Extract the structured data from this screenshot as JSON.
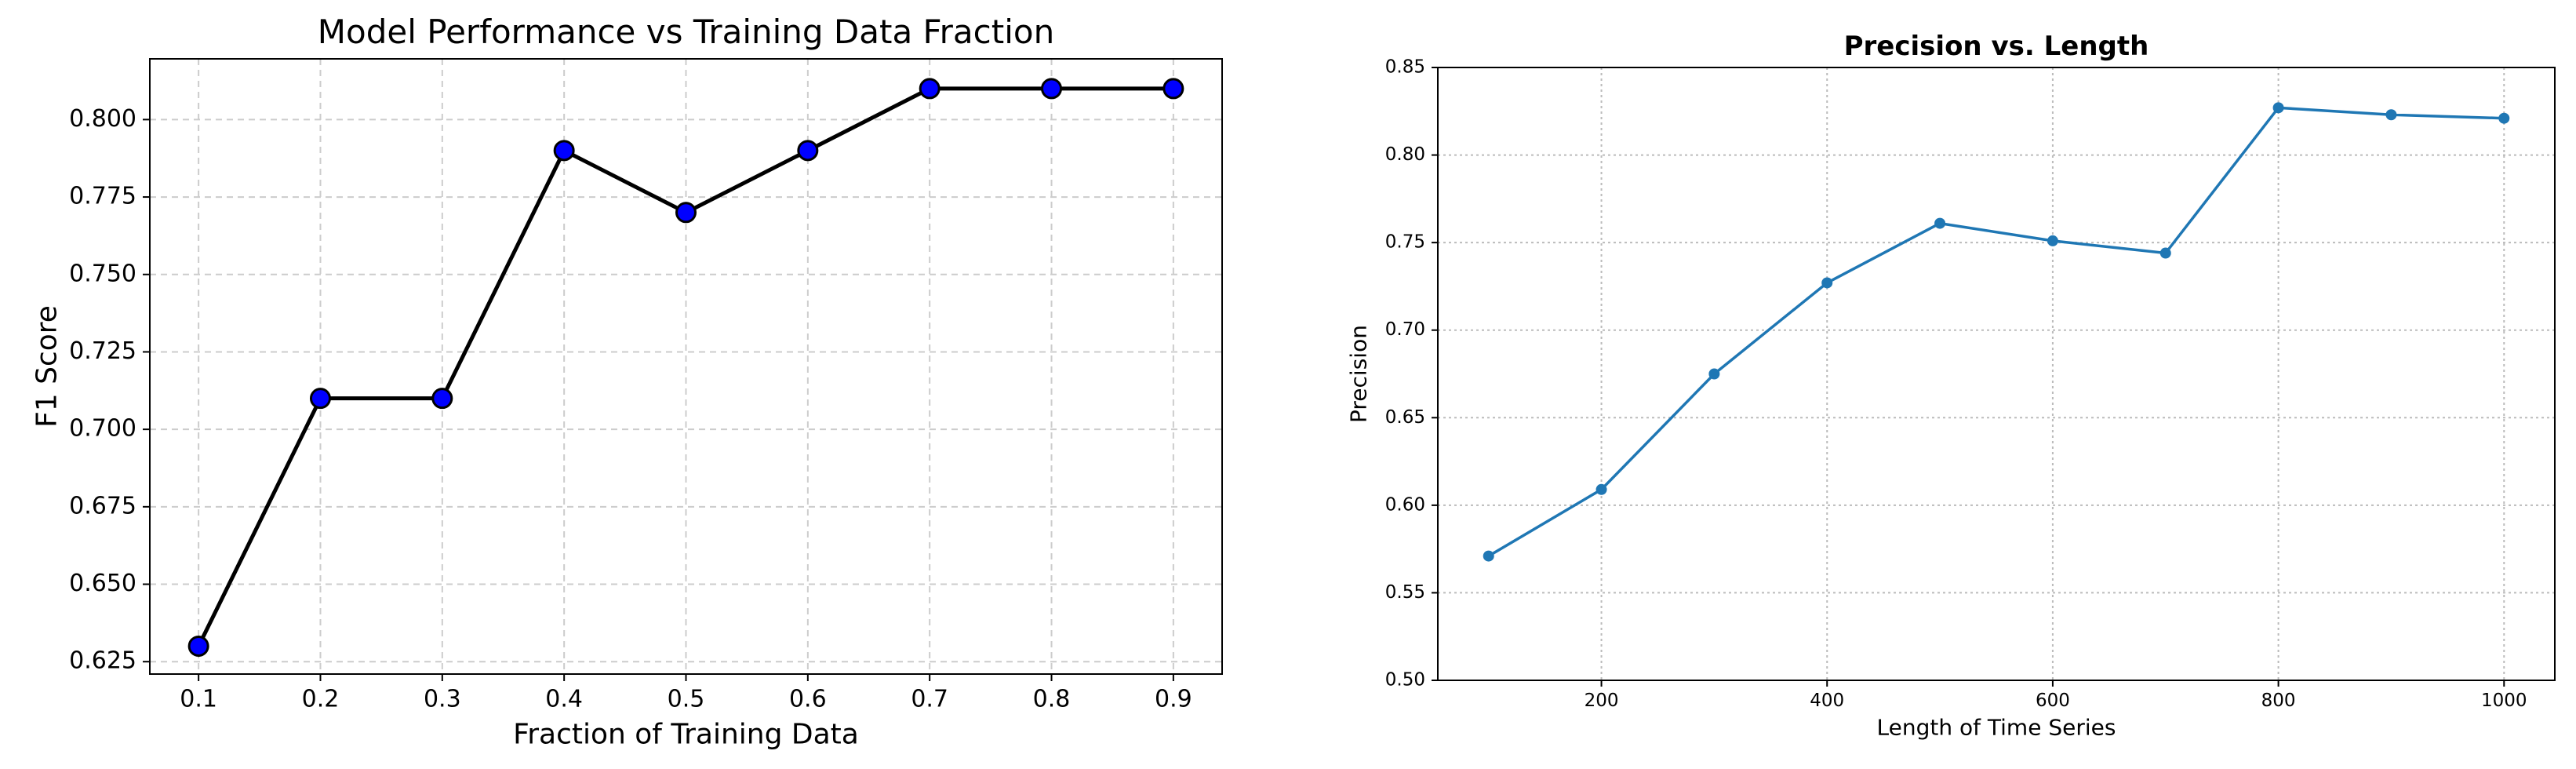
{
  "chart_data": [
    {
      "type": "line",
      "title": "Model Performance vs Training Data Fraction",
      "x_label": "Fraction of Training Data",
      "y_label": "F1 Score",
      "x": [
        0.1,
        0.2,
        0.3,
        0.4,
        0.5,
        0.6,
        0.7,
        0.8,
        0.9
      ],
      "values": [
        0.63,
        0.71,
        0.71,
        0.79,
        0.77,
        0.79,
        0.81,
        0.81,
        0.81
      ],
      "color": "#000000",
      "marker_color": "#0000ff",
      "xlim": [
        0.06,
        0.94
      ],
      "ylim": [
        0.621,
        0.8196
      ],
      "xticks": [
        0.1,
        0.2,
        0.3,
        0.4,
        0.5,
        0.6,
        0.7,
        0.8,
        0.9
      ],
      "yticks": [
        0.625,
        {
          "value": 0.65,
          "label": "0.650"
        },
        0.675,
        {
          "value": 0.7,
          "label": "0.700"
        },
        0.725,
        {
          "value": 0.75,
          "label": "0.750"
        },
        0.775,
        {
          "value": 0.8,
          "label": "0.800"
        }
      ],
      "grid": true
    },
    {
      "type": "line",
      "title": "Precision vs. Length",
      "x_label": "Length of Time Series",
      "y_label": "Precision",
      "x": [
        100,
        200,
        300,
        400,
        500,
        600,
        700,
        800,
        900,
        1000
      ],
      "values": [
        0.571,
        0.609,
        0.675,
        0.727,
        0.761,
        0.751,
        0.744,
        0.827,
        0.823,
        0.821
      ],
      "color": "#1f77b4",
      "marker_color": "#1f77b4",
      "xlim": [
        55,
        1045
      ],
      "ylim": [
        0.5,
        0.85
      ],
      "xticks": [
        200,
        400,
        600,
        800,
        1000
      ],
      "yticks": [
        {
          "value": 0.5,
          "label": "0.50"
        },
        0.55,
        {
          "value": 0.6,
          "label": "0.60"
        },
        0.65,
        {
          "value": 0.7,
          "label": "0.70"
        },
        0.75,
        {
          "value": 0.8,
          "label": "0.80"
        },
        0.85
      ],
      "grid": true
    }
  ]
}
